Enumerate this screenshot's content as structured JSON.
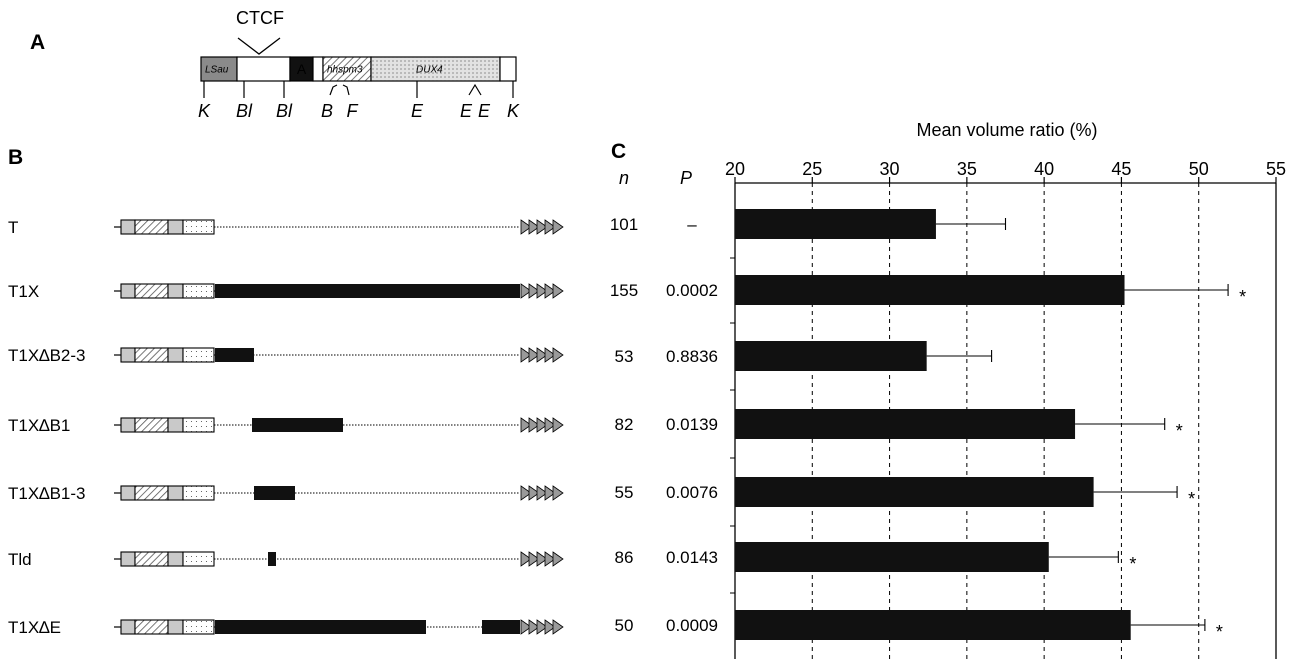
{
  "panels": {
    "a": "A",
    "b": "B",
    "c": "C"
  },
  "map": {
    "ctcf_label": "CTCF",
    "segments": [
      {
        "label": "LSau",
        "fill": "#8a8a8a",
        "text_color": "#ffffff"
      },
      {
        "label": "",
        "fill": "#ffffff",
        "text_color": "#000000"
      },
      {
        "label": "A",
        "fill": "#111111",
        "text_color": "#ffffff"
      },
      {
        "label": "",
        "fill": "#ffffff",
        "text_color": "#000000"
      },
      {
        "label": "hhspm3",
        "fill": "pattern-hatch",
        "text_color": "#000000"
      },
      {
        "label": "DUX4",
        "fill": "pattern-dots",
        "text_color": "#333333"
      },
      {
        "label": "",
        "fill": "#ffffff",
        "text_color": "#000000"
      }
    ],
    "sites": [
      "K",
      "Bl",
      "Bl",
      "B",
      "F",
      "E",
      "E",
      "E",
      "K"
    ]
  },
  "constructs": {
    "rows": [
      {
        "name": "T",
        "n": "101",
        "p": "–"
      },
      {
        "name": "T1X",
        "n": "155",
        "p": "0.0002"
      },
      {
        "name": "T1X∆B2-3",
        "n": "53",
        "p": "0.8836"
      },
      {
        "name": "T1X∆B1",
        "n": "82",
        "p": "0.0139"
      },
      {
        "name": "T1X∆B1-3",
        "n": "55",
        "p": "0.0076"
      },
      {
        "name": "Tld",
        "n": "86",
        "p": "0.0143"
      },
      {
        "name": "T1X∆E",
        "n": "50",
        "p": "0.0009"
      }
    ]
  },
  "table_headers": {
    "n": "n",
    "p": "P"
  },
  "chart_data": {
    "type": "bar",
    "orientation": "horizontal",
    "title": "Mean volume ratio (%)",
    "xlabel": "Mean volume ratio (%)",
    "xlim": [
      20,
      55
    ],
    "ticks": [
      "20",
      "25",
      "30",
      "35",
      "40",
      "45",
      "50",
      "55"
    ],
    "grid": "dashed vertical lines at 25, 30, 35, 40, 45, 50",
    "categories": [
      "T",
      "T1X",
      "T1X∆B2-3",
      "T1X∆B1",
      "T1X∆B1-3",
      "Tld",
      "T1X∆E"
    ],
    "values": [
      33.0,
      45.2,
      32.4,
      42.0,
      43.2,
      40.3,
      45.6
    ],
    "error_plus": [
      4.5,
      6.7,
      4.2,
      5.8,
      5.4,
      4.5,
      4.8
    ],
    "significance": [
      "",
      "*",
      "",
      "*",
      "*",
      "*",
      "*"
    ],
    "bar_color": "#111111"
  }
}
